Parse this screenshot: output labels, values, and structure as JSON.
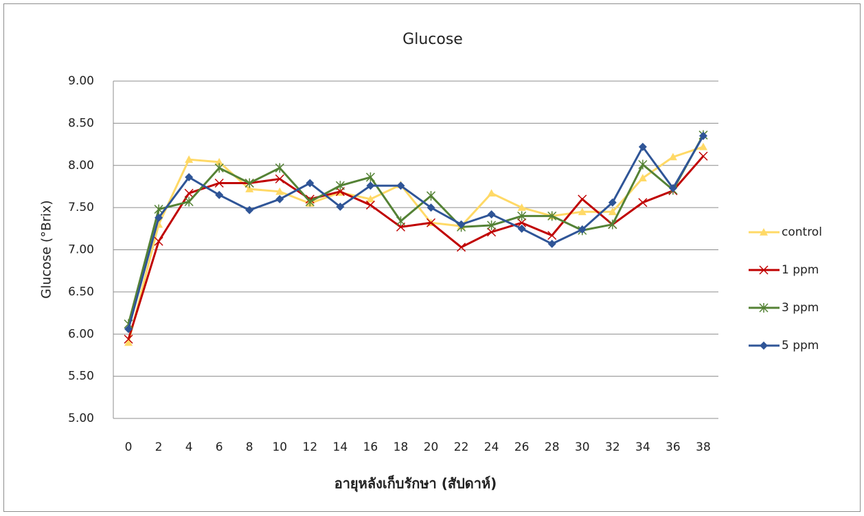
{
  "chart_data": {
    "type": "line",
    "title": "Glucose",
    "x_label": "อายุหลังเก็บรักษา (สัปดาห์)",
    "y_label": "Glucose (°Brix)",
    "categories": [
      "0",
      "2",
      "4",
      "6",
      "8",
      "10",
      "12",
      "14",
      "16",
      "18",
      "20",
      "22",
      "24",
      "26",
      "28",
      "30",
      "32",
      "34",
      "36",
      "38"
    ],
    "series": [
      {
        "name": "control",
        "color": "#ffd966",
        "marker": "triangle",
        "values": [
          5.9,
          7.3,
          8.07,
          8.04,
          7.72,
          7.69,
          7.55,
          7.68,
          7.6,
          7.77,
          7.32,
          7.28,
          7.67,
          7.5,
          7.4,
          7.45,
          7.45,
          7.85,
          8.1,
          8.22
        ]
      },
      {
        "name": "1 ppm",
        "color": "#c00000",
        "marker": "x",
        "values": [
          5.94,
          7.1,
          7.67,
          7.79,
          7.79,
          7.84,
          7.6,
          7.69,
          7.53,
          7.27,
          7.32,
          7.03,
          7.21,
          7.32,
          7.17,
          7.6,
          7.3,
          7.56,
          7.7,
          8.11
        ]
      },
      {
        "name": "3 ppm",
        "color": "#548235",
        "marker": "star",
        "values": [
          6.12,
          7.48,
          7.57,
          7.97,
          7.79,
          7.97,
          7.57,
          7.76,
          7.86,
          7.34,
          7.64,
          7.27,
          7.29,
          7.4,
          7.4,
          7.23,
          7.3,
          8.01,
          7.71,
          8.36
        ]
      },
      {
        "name": "5 ppm",
        "color": "#2f5597",
        "marker": "diamond",
        "values": [
          6.06,
          7.38,
          7.86,
          7.65,
          7.47,
          7.6,
          7.79,
          7.51,
          7.76,
          7.76,
          7.5,
          7.3,
          7.42,
          7.25,
          7.07,
          7.24,
          7.56,
          8.22,
          7.73,
          8.35
        ]
      }
    ],
    "ylim": [
      5,
      9
    ],
    "yticks": [
      {
        "value": 5,
        "label": "5.00"
      },
      {
        "value": 5.5,
        "label": "5.50"
      },
      {
        "value": 6,
        "label": "6.00"
      },
      {
        "value": 6.5,
        "label": "6.50"
      },
      {
        "value": 7,
        "label": "7.00"
      },
      {
        "value": 7.5,
        "label": "7.50"
      },
      {
        "value": 8,
        "label": "8.00"
      },
      {
        "value": 8.5,
        "label": "8.50"
      },
      {
        "value": 9,
        "label": "9.00"
      }
    ],
    "grid": true,
    "legend": "right"
  }
}
